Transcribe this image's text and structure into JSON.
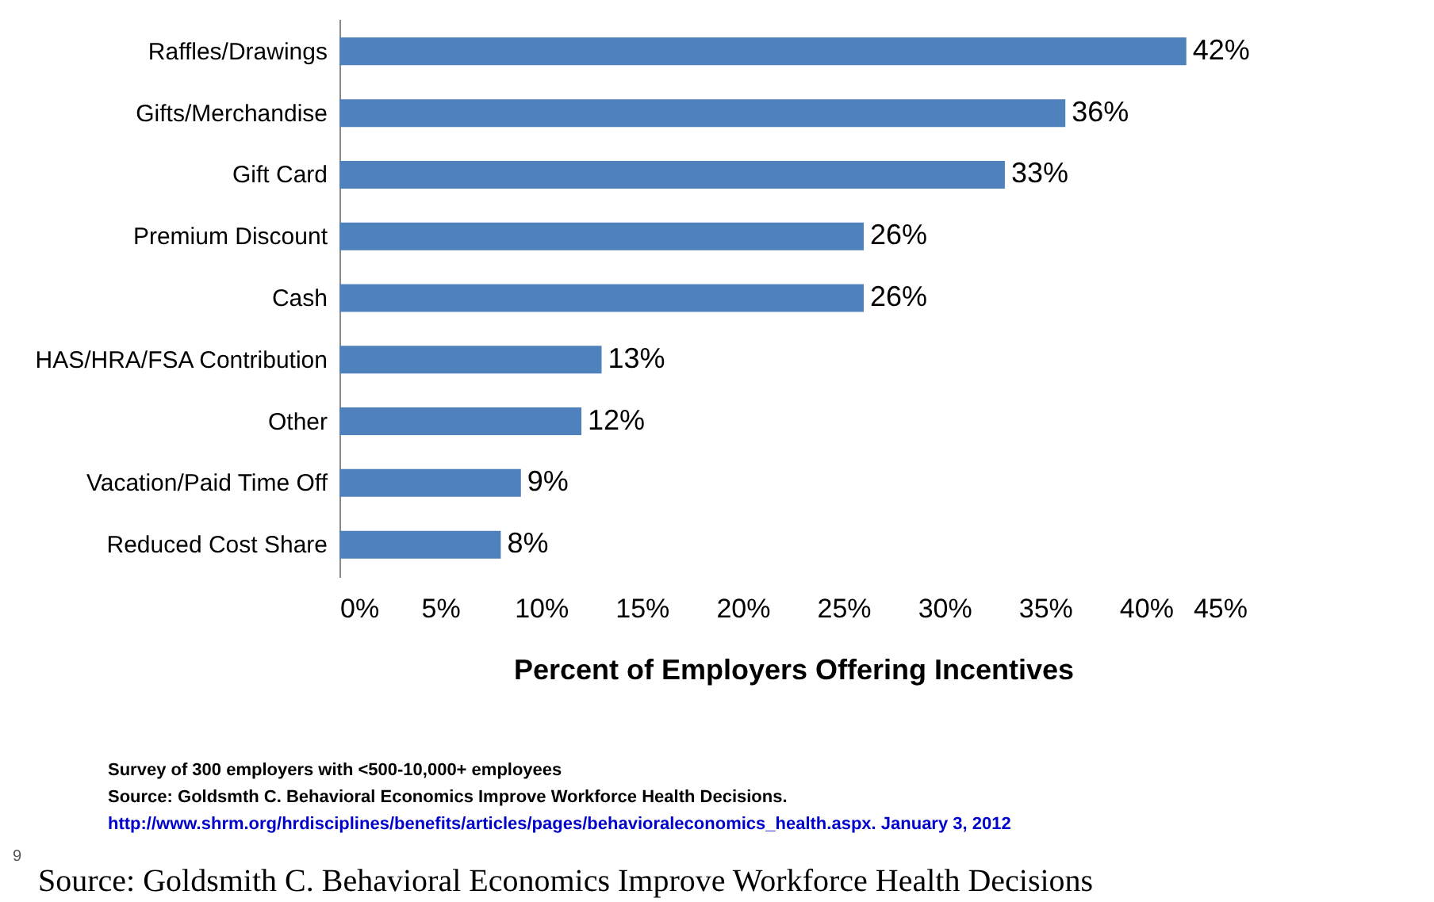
{
  "chart_data": {
    "type": "bar",
    "orientation": "horizontal",
    "xlabel": "Percent of Employers Offering Incentives",
    "categories": [
      "Raffles/Drawings",
      "Gifts/Merchandise",
      "Gift Card",
      "Premium Discount",
      "Cash",
      "HAS/HRA/FSA Contribution",
      "Other",
      "Vacation/Paid Time Off",
      "Reduced Cost Share"
    ],
    "values": [
      42,
      36,
      33,
      26,
      26,
      13,
      12,
      9,
      8
    ],
    "value_labels": [
      "42%",
      "36%",
      "33%",
      "26%",
      "26%",
      "13%",
      "12%",
      "9%",
      "8%"
    ],
    "color": "#4f81bd",
    "xlim": [
      0,
      45
    ],
    "xticks": [
      {
        "value": 0,
        "label": "0%"
      },
      {
        "value": 5,
        "label": "5%"
      },
      {
        "value": 10,
        "label": "10%"
      },
      {
        "value": 15,
        "label": "15%"
      },
      {
        "value": 20,
        "label": "20%"
      },
      {
        "value": 25,
        "label": "25%"
      },
      {
        "value": 30,
        "label": "30%"
      },
      {
        "value": 35,
        "label": "35%"
      },
      {
        "value": 40,
        "label": "40%"
      },
      {
        "value": 45,
        "label": "45%"
      }
    ],
    "grid": false,
    "annotations": [
      "Survey of 300 employers with <500-10,000+ employees",
      "Source: Goldsmth C. Behavioral Economics Improve Workforce Health Decisions.",
      "http://www.shrm.org/hrdisciplines/benefits/articles/pages/behavioraleconomics_health.aspx. January 3, 2012",
      "9",
      "Source: Goldsmith C. Behavioral Economics Improve Workforce Health Decisions"
    ]
  }
}
